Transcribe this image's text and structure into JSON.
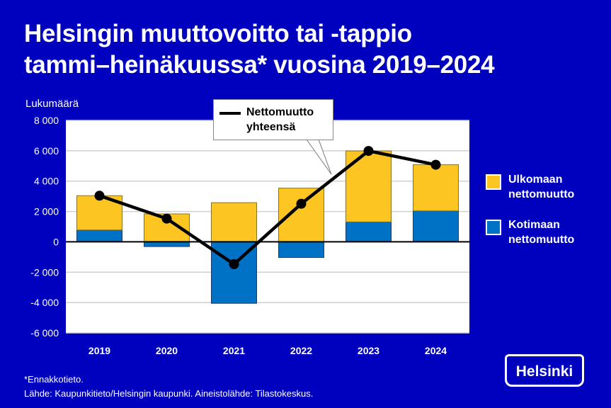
{
  "title_line1": "Helsingin muuttovoitto tai -tappio",
  "title_line2": "tammi–heinäkuussa* vuosina 2019–2024",
  "footnote": "*Ennakkotieto.",
  "source": "Lähde: Kaupunkitieto/Helsingin kaupunki. Aineistolähde: Tilastokeskus.",
  "logo": "Helsinki",
  "chart_data": {
    "type": "bar",
    "stacked": true,
    "ylabel": "Lukumäärä",
    "ylim": [
      -6000,
      8000
    ],
    "yticks": [
      -6000,
      -4000,
      -2000,
      0,
      2000,
      4000,
      6000,
      8000
    ],
    "ytick_labels": [
      "-6 000",
      "-4 000",
      "-2 000",
      "0",
      "2 000",
      "4 000",
      "6 000",
      "8 000"
    ],
    "grid": true,
    "legend_position": "right",
    "categories": [
      "2019",
      "2020",
      "2021",
      "2022",
      "2023",
      "2024"
    ],
    "series": [
      {
        "name": "Kotimaan nettomuutto",
        "type": "bar",
        "color": "#0072c6",
        "values": [
          780,
          -310,
          -4050,
          -1030,
          1310,
          2040
        ]
      },
      {
        "name": "Ulkomaan nettomuutto",
        "type": "bar",
        "color": "#fcc521",
        "values": [
          2260,
          1840,
          2580,
          3540,
          4680,
          3040
        ]
      },
      {
        "name": "Nettomuutto yhteensä",
        "type": "line",
        "color": "#000000",
        "values": [
          3040,
          1530,
          -1470,
          2510,
          5990,
          5080
        ]
      }
    ],
    "legend": {
      "ext_l1": "Ulkomaan",
      "ext_l2": "nettomuutto",
      "dom_l1": "Kotimaan",
      "dom_l2": "nettomuutto",
      "line_l1": "Nettomuutto",
      "line_l2": "yhteensä"
    }
  }
}
